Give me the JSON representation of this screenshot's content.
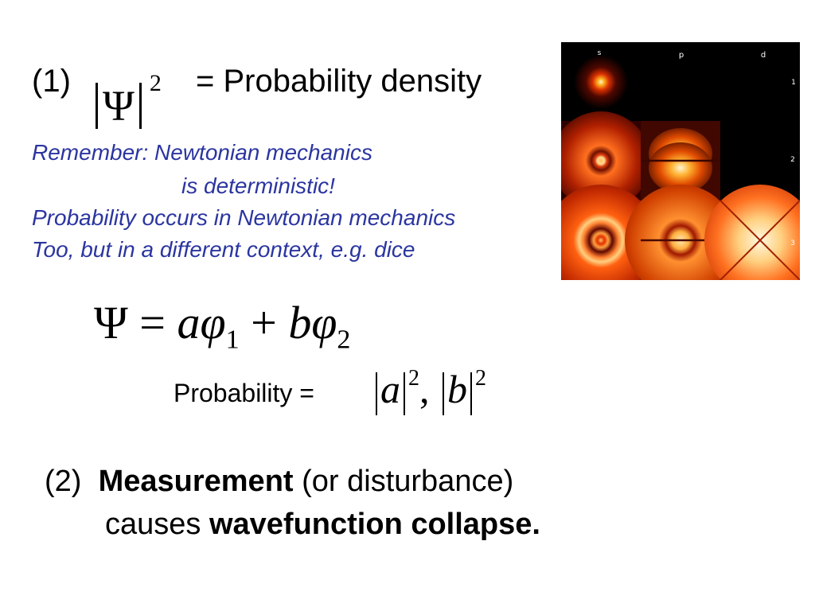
{
  "item1": {
    "number": "(1)",
    "psi_symbol": "Ψ",
    "exponent": "2",
    "label": "= Probability density"
  },
  "note": {
    "line1": "Remember: Newtonian mechanics",
    "line2": "is deterministic!",
    "line3": "Probability occurs in Newtonian mechanics",
    "line4": "Too, but in a different context, e.g. dice"
  },
  "figure": {
    "columns": [
      "s",
      "p",
      "d"
    ],
    "rows": [
      "1",
      "2",
      "3"
    ]
  },
  "superposition": {
    "psi": "Ψ",
    "equals": "=",
    "a": "a",
    "phi": "φ",
    "sub1": "1",
    "plus": "+",
    "b": "b",
    "sub2": "2"
  },
  "probability": {
    "label": "Probability =",
    "a": "a",
    "b": "b",
    "exponent": "2",
    "comma": ","
  },
  "item2": {
    "number": "(2)",
    "measurement": "Measurement",
    "paren": "(or disturbance)",
    "causes": "causes",
    "collapse": "wavefunction collapse."
  },
  "colors": {
    "note_text": "#2b35a0",
    "figure_bg": "#000000",
    "orbital_glow": "#ff5a00"
  }
}
